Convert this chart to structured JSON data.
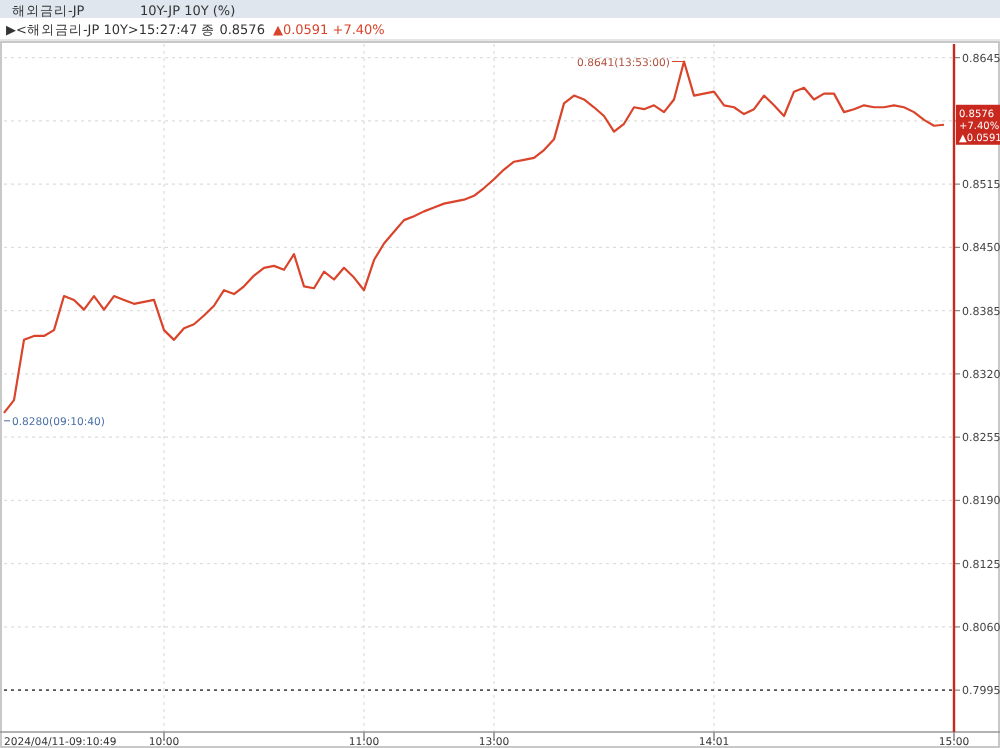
{
  "chart_data": {
    "type": "line",
    "title": "해외금리-JP",
    "subtitle": "10Y-JP 10Y (%)",
    "annotations": [
      "▶<해외금리-JP 10Y>15:27:47 종 0.8576",
      "▲0.0591 +7.40%",
      "0.8641(13:53:00)",
      "0.8280(09:10:40)",
      "0.8576",
      "+7.40%",
      "▲0.0591",
      "2024/04/11-09:10:49"
    ],
    "categories": [
      null,
      null,
      null,
      null,
      null,
      null,
      null,
      null,
      null,
      null,
      null,
      null,
      null,
      null,
      null,
      null,
      "10:00",
      null,
      null,
      null,
      null,
      null,
      null,
      null,
      null,
      null,
      null,
      null,
      null,
      null,
      null,
      null,
      null,
      null,
      null,
      null,
      "11:00",
      null,
      null,
      null,
      null,
      null,
      null,
      null,
      null,
      null,
      null,
      null,
      null,
      "13:00",
      null,
      null,
      null,
      null,
      null,
      null,
      null,
      null,
      null,
      null,
      null,
      null,
      null,
      null,
      null,
      null,
      null,
      null,
      null,
      null,
      null,
      "14:01",
      null,
      null,
      null,
      null,
      null,
      null,
      null,
      null,
      null,
      null,
      null,
      null,
      null,
      null,
      null,
      null,
      null,
      null,
      null,
      null,
      null,
      null,
      null,
      "15:00"
    ],
    "series": [
      {
        "color": "#d9442b",
        "values": [
          0.828,
          0.8293,
          0.8355,
          0.8359,
          0.8359,
          0.8365,
          0.84,
          0.8396,
          0.8386,
          0.84,
          0.8386,
          0.84,
          0.8396,
          0.8392,
          0.8394,
          0.8396,
          0.8365,
          0.8355,
          0.8367,
          0.8371,
          0.838,
          0.839,
          0.8406,
          0.8402,
          0.841,
          0.8421,
          0.8429,
          0.8431,
          0.8427,
          0.8443,
          0.841,
          0.8408,
          0.8425,
          0.8417,
          0.8429,
          0.8419,
          0.8406,
          0.8437,
          0.8454,
          0.8466,
          0.8478,
          0.8482,
          0.8487,
          0.8491,
          0.8495,
          0.8497,
          0.8499,
          0.8503,
          0.8511,
          0.852,
          0.853,
          0.8538,
          0.854,
          0.8542,
          0.855,
          0.8561,
          0.8598,
          0.8606,
          0.8602,
          0.8594,
          0.8585,
          0.8569,
          0.8577,
          0.8594,
          0.8592,
          0.8596,
          0.8589,
          0.8602,
          0.8641,
          0.8606,
          0.8608,
          0.861,
          0.8596,
          0.8594,
          0.8587,
          0.8592,
          0.8606,
          0.8596,
          0.8585,
          0.861,
          0.8614,
          0.8602,
          0.8608,
          0.8608,
          0.8589,
          0.8592,
          0.8596,
          0.8594,
          0.8594,
          0.8596,
          0.8594,
          0.8589,
          0.8581,
          0.8575,
          0.8576,
          null
        ]
      }
    ],
    "ylim": [
      0.7952,
      0.8659
    ],
    "yticks": [
      {
        "value": 0.7995,
        "label": "0.7995"
      },
      {
        "value": 0.806,
        "label": "0.8060"
      },
      {
        "value": 0.8125,
        "label": "0.8125"
      },
      {
        "value": 0.819,
        "label": "0.8190"
      },
      {
        "value": 0.8255,
        "label": "0.8255"
      },
      {
        "value": 0.832,
        "label": "0.8320"
      },
      {
        "value": 0.8385,
        "label": "0.8385"
      },
      {
        "value": 0.845,
        "label": "0.8450"
      },
      {
        "value": 0.8515,
        "label": "0.8515"
      },
      {
        "value": 0.858,
        "label": null
      },
      {
        "value": 0.8645,
        "label": "0.8645"
      }
    ],
    "ref_lines": [
      {
        "axis": "y",
        "value": 0.7995,
        "color": "#555555",
        "line_style": "dotted"
      }
    ],
    "grid": true,
    "marker": "none",
    "line_style": "solid"
  }
}
